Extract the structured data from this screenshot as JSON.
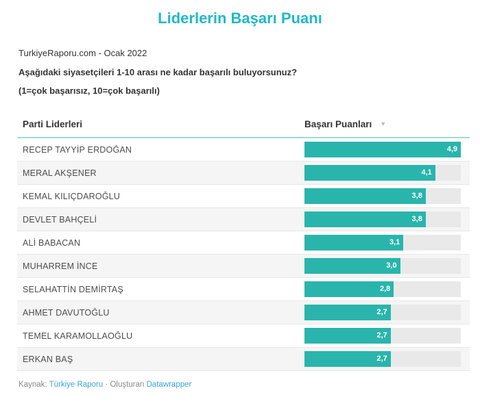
{
  "title": "Liderlerin Başarı Puanı",
  "subtitle": "TurkiyeRaporu.com - Ocak 2022",
  "description_line1": "Aşağıdaki siyasetçileri 1-10 arası ne kadar başarılı buluyorsunuz?",
  "description_line2": "(1=çok başarısız, 10=çok başarılı)",
  "table": {
    "name_header": "Parti Liderleri",
    "score_header": "Başarı Puanları",
    "sort_icon": "▼"
  },
  "chart_data": {
    "type": "bar",
    "title": "Liderlerin Başarı Puanı",
    "categories": [
      "RECEP TAYYİP ERDOĞAN",
      "MERAL AKŞENER",
      "KEMAL KILIÇDAROĞLU",
      "DEVLET BAHÇELİ",
      "ALİ BABACAN",
      "MUHARREM İNCE",
      "SELAHATTİN DEMİRTAŞ",
      "AHMET DAVUTOĞLU",
      "TEMEL KARAMOLLAOĞLU",
      "ERKAN BAŞ"
    ],
    "values": [
      4.9,
      4.1,
      3.8,
      3.8,
      3.1,
      3.0,
      2.8,
      2.7,
      2.7,
      2.7
    ],
    "value_labels": [
      "4,9",
      "4,1",
      "3,8",
      "3,8",
      "3,1",
      "3,0",
      "2,8",
      "2,7",
      "2,7",
      "2,7"
    ],
    "xlabel": "Başarı Puanları",
    "ylabel": "Parti Liderleri",
    "xlim": [
      0,
      4.9
    ],
    "legend": "none",
    "grid": "off"
  },
  "footer": {
    "source_label": "Kaynak:",
    "source_link": "Türkiye Raporu",
    "separator": "·",
    "creator_label": "Oluşturan",
    "creator_link": "Datawrapper"
  },
  "colors": {
    "title_teal": "#1ebac4",
    "bar_teal": "#29b5ac",
    "header_rule_teal": "#9edad8",
    "bar_track_gray": "#e9e9e9",
    "row_stripe_gray": "#f5f5f5",
    "link_blue": "#3ba3dc",
    "value_text": "#ffffff"
  }
}
